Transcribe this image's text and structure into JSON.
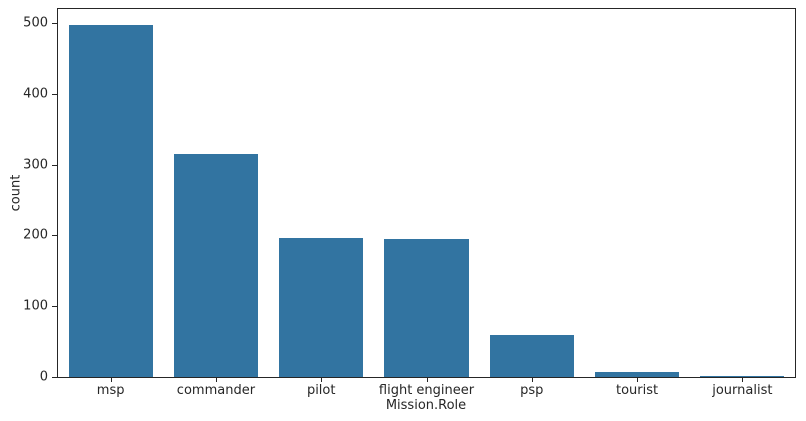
{
  "chart_data": {
    "type": "bar",
    "title": "",
    "categories": [
      "msp",
      "commander",
      "pilot",
      "flight engineer",
      "psp",
      "tourist",
      "journalist"
    ],
    "values": [
      498,
      315,
      196,
      195,
      59,
      7,
      1
    ],
    "xlabel": "Mission.Role",
    "ylabel": "count",
    "ylim": [
      0,
      520
    ],
    "yticks": [
      0,
      100,
      200,
      300,
      400,
      500
    ],
    "bar_color": "#3274a1",
    "bar_width_fraction": 0.8,
    "axis_color": "#262626",
    "grid": false,
    "legend_position": "none"
  }
}
